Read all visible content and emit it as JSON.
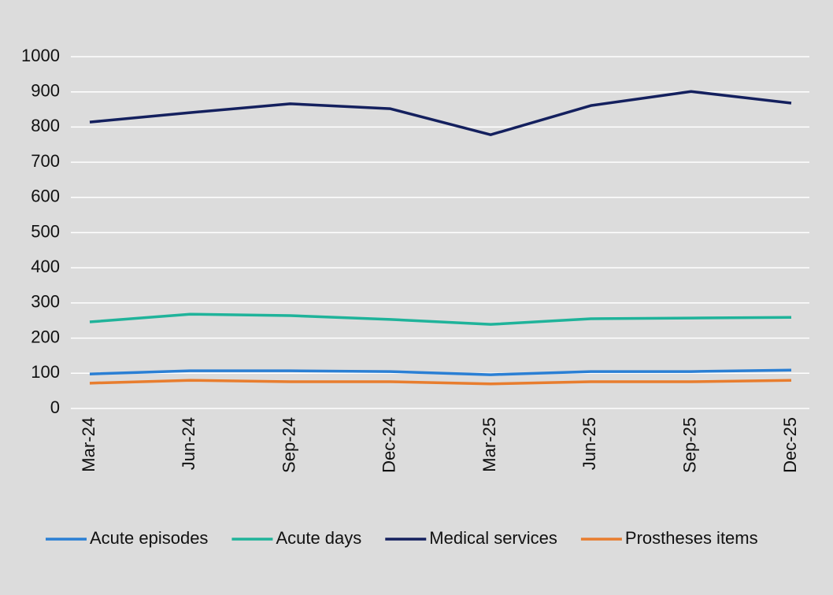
{
  "chart_data": {
    "type": "line",
    "categories": [
      "Mar-24",
      "Jun-24",
      "Sep-24",
      "Dec-24",
      "Mar-25",
      "Jun-25",
      "Sep-25",
      "Dec-25"
    ],
    "series": [
      {
        "name": "Acute episodes",
        "color": "#2a7fd4",
        "values": [
          98,
          107,
          107,
          105,
          96,
          105,
          105,
          109
        ]
      },
      {
        "name": "Acute days",
        "color": "#1fb39a",
        "values": [
          246,
          268,
          264,
          253,
          239,
          255,
          257,
          259
        ]
      },
      {
        "name": "Medical services",
        "color": "#14205e",
        "values": [
          814,
          841,
          866,
          852,
          778,
          861,
          901,
          868
        ]
      },
      {
        "name": "Prostheses items",
        "color": "#e87d2e",
        "values": [
          72,
          80,
          76,
          76,
          70,
          76,
          76,
          80
        ]
      }
    ],
    "ylim": [
      0,
      1000
    ],
    "yticks": [
      0,
      100,
      200,
      300,
      400,
      500,
      600,
      700,
      800,
      900,
      1000
    ],
    "grid": true,
    "legend": "bottom"
  }
}
